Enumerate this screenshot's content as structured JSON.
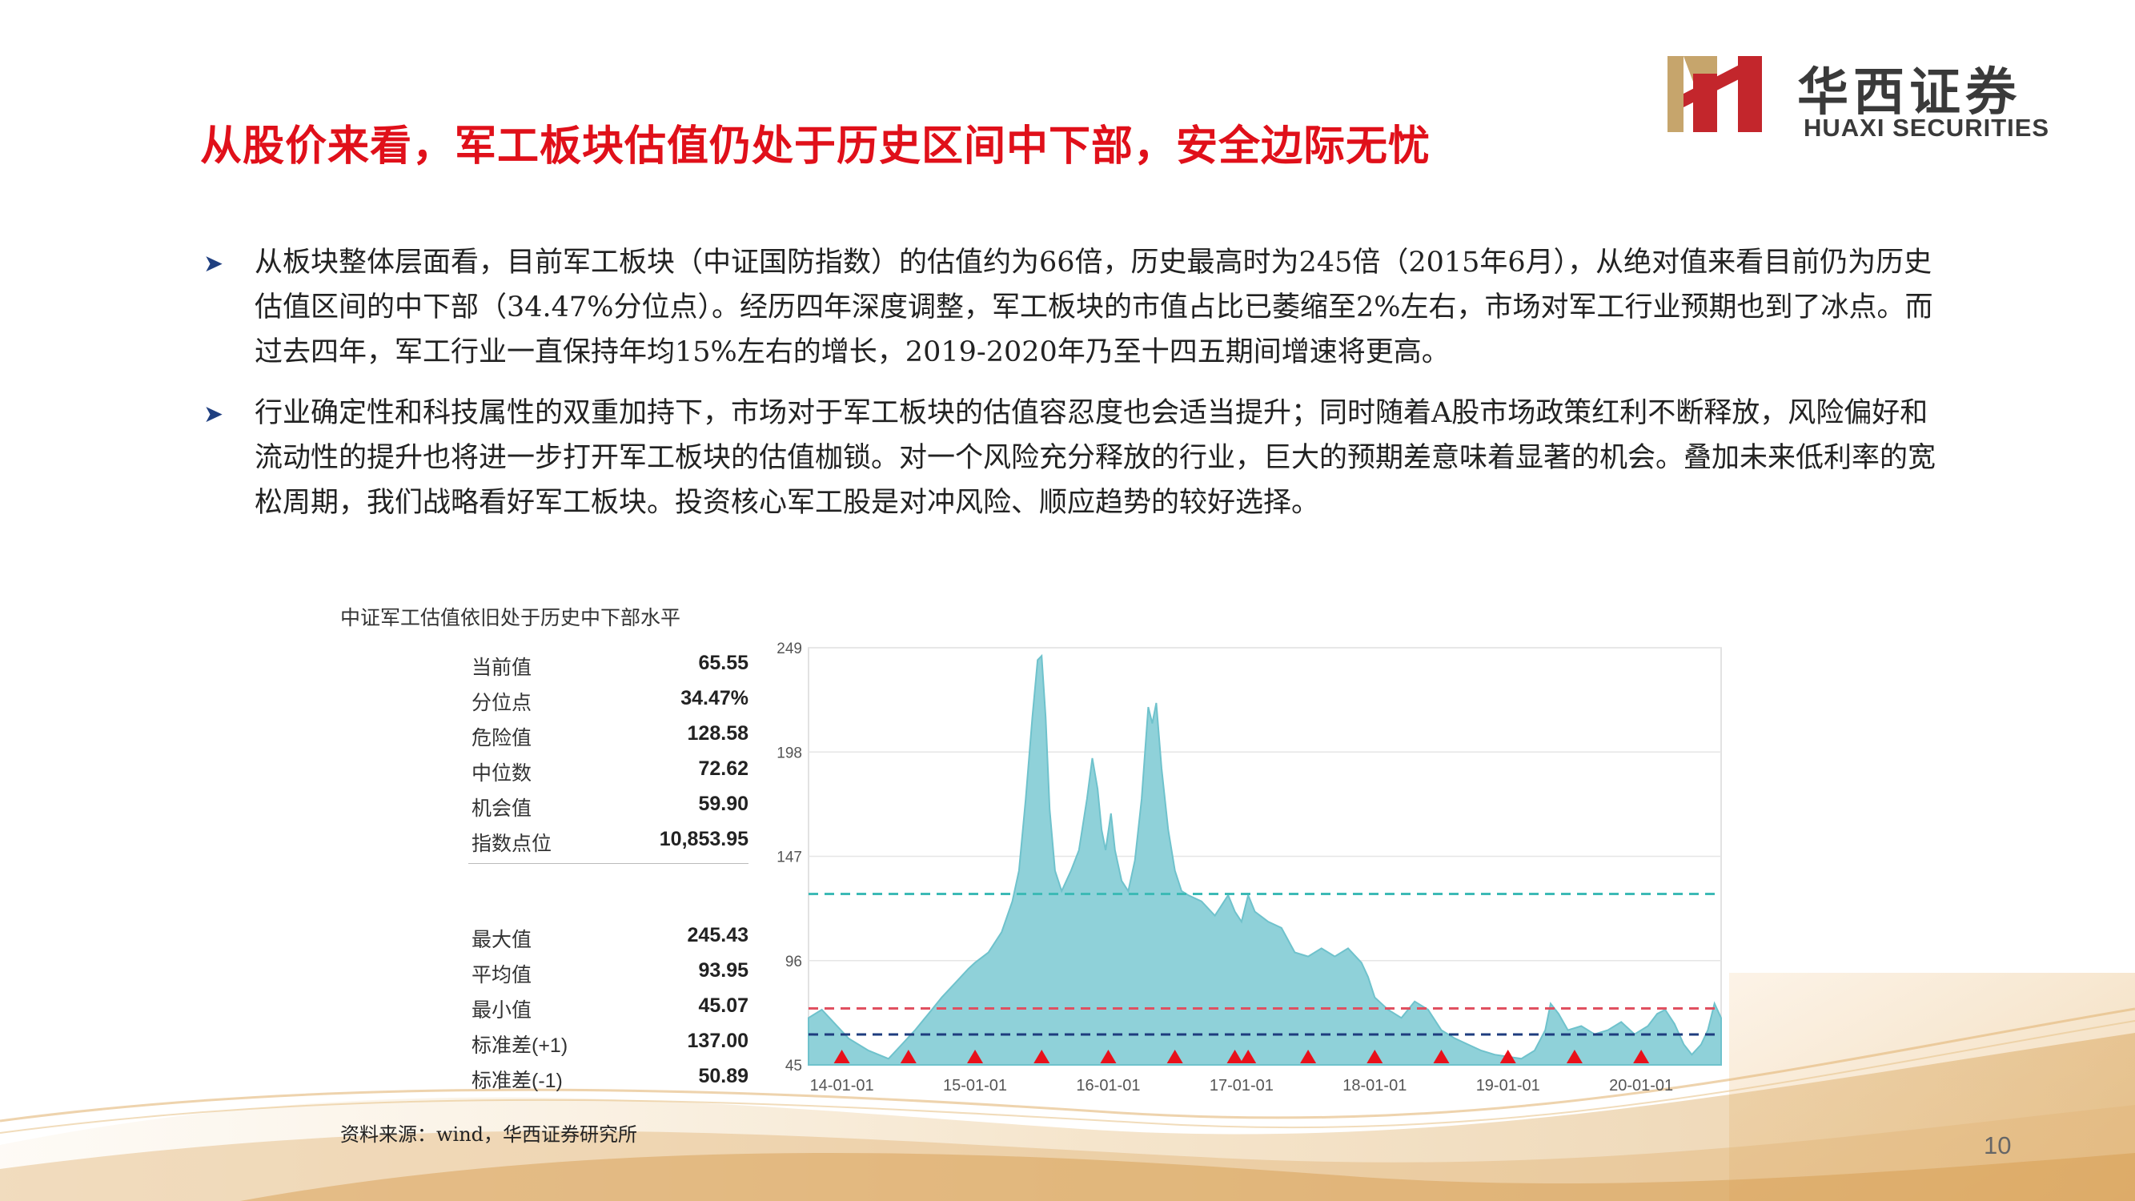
{
  "title": "从股价来看，军工板块估值仍处于历史区间中下部，安全边际无忧",
  "logo": {
    "cn": "华西证券",
    "en": "HUAXI SECURITIES"
  },
  "bullets": [
    "从板块整体层面看，目前军工板块（中证国防指数）的估值约为66倍，历史最高时为245倍（2015年6月），从绝对值来看目前仍为历史估值区间的中下部（34.47%分位点）。经历四年深度调整，军工板块的市值占比已萎缩至2%左右，市场对军工行业预期也到了冰点。而过去四年，军工行业一直保持年均15%左右的增长，2019-2020年乃至十四五期间增速将更高。",
    "行业确定性和科技属性的双重加持下，市场对于军工板块的估值容忍度也会适当提升；同时随着A股市场政策红利不断释放，风险偏好和流动性的提升也将进一步打开军工板块的估值枷锁。对一个风险充分释放的行业，巨大的预期差意味着显著的机会。叠加未来低利率的宽松周期，我们战略看好军工板块。投资核心军工股是对冲风险、顺应趋势的较好选择。"
  ],
  "chart_caption": "中证军工估值依旧处于历史中下部水平",
  "stats_top": [
    {
      "label": "当前值",
      "value": "65.55"
    },
    {
      "label": "分位点",
      "value": "34.47%"
    },
    {
      "label": "危险值",
      "value": "128.58"
    },
    {
      "label": "中位数",
      "value": "72.62"
    },
    {
      "label": "机会值",
      "value": "59.90"
    },
    {
      "label": "指数点位",
      "value": "10,853.95"
    }
  ],
  "stats_bottom": [
    {
      "label": "最大值",
      "value": "245.43"
    },
    {
      "label": "平均值",
      "value": "93.95"
    },
    {
      "label": "最小值",
      "value": "45.07"
    },
    {
      "label": "标准差(+1)",
      "value": "137.00"
    },
    {
      "label": "标准差(-1)",
      "value": "50.89"
    }
  ],
  "chart_data": {
    "type": "area",
    "ylim": [
      45,
      249
    ],
    "yticks": [
      "249",
      "198",
      "147",
      "96",
      "45"
    ],
    "xticks": [
      {
        "t": 0.0,
        "label": "14-01-01"
      },
      {
        "t": 1.0,
        "label": "15-01-01"
      },
      {
        "t": 2.0,
        "label": "16-01-01"
      },
      {
        "t": 3.0,
        "label": "17-01-01"
      },
      {
        "t": 4.0,
        "label": "18-01-01"
      },
      {
        "t": 5.0,
        "label": "19-01-01"
      },
      {
        "t": 6.0,
        "label": "20-01-01"
      }
    ],
    "xlim": [
      -0.25,
      6.6
    ],
    "series": [
      {
        "values": [
          [
            -0.25,
            68
          ],
          [
            -0.15,
            72
          ],
          [
            -0.05,
            65
          ],
          [
            0.05,
            58
          ],
          [
            0.2,
            52
          ],
          [
            0.35,
            48
          ],
          [
            0.45,
            55
          ],
          [
            0.55,
            62
          ],
          [
            0.65,
            70
          ],
          [
            0.75,
            78
          ],
          [
            0.85,
            85
          ],
          [
            0.95,
            92
          ],
          [
            1.0,
            95
          ],
          [
            1.1,
            100
          ],
          [
            1.2,
            110
          ],
          [
            1.28,
            125
          ],
          [
            1.33,
            140
          ],
          [
            1.38,
            175
          ],
          [
            1.43,
            215
          ],
          [
            1.47,
            243
          ],
          [
            1.5,
            245
          ],
          [
            1.53,
            215
          ],
          [
            1.56,
            170
          ],
          [
            1.6,
            140
          ],
          [
            1.65,
            130
          ],
          [
            1.72,
            140
          ],
          [
            1.78,
            150
          ],
          [
            1.84,
            175
          ],
          [
            1.88,
            195
          ],
          [
            1.92,
            180
          ],
          [
            1.95,
            160
          ],
          [
            1.98,
            150
          ],
          [
            2.02,
            168
          ],
          [
            2.05,
            150
          ],
          [
            2.1,
            135
          ],
          [
            2.15,
            130
          ],
          [
            2.2,
            145
          ],
          [
            2.25,
            175
          ],
          [
            2.3,
            220
          ],
          [
            2.33,
            212
          ],
          [
            2.36,
            222
          ],
          [
            2.4,
            190
          ],
          [
            2.45,
            160
          ],
          [
            2.5,
            140
          ],
          [
            2.55,
            130
          ],
          [
            2.6,
            128
          ],
          [
            2.7,
            125
          ],
          [
            2.8,
            118
          ],
          [
            2.9,
            128
          ],
          [
            2.95,
            120
          ],
          [
            3.0,
            115
          ],
          [
            3.05,
            128
          ],
          [
            3.1,
            120
          ],
          [
            3.2,
            115
          ],
          [
            3.3,
            112
          ],
          [
            3.4,
            100
          ],
          [
            3.5,
            98
          ],
          [
            3.6,
            102
          ],
          [
            3.7,
            98
          ],
          [
            3.8,
            102
          ],
          [
            3.9,
            95
          ],
          [
            3.95,
            88
          ],
          [
            4.0,
            78
          ],
          [
            4.1,
            72
          ],
          [
            4.2,
            68
          ],
          [
            4.3,
            76
          ],
          [
            4.4,
            72
          ],
          [
            4.5,
            62
          ],
          [
            4.6,
            58
          ],
          [
            4.7,
            55
          ],
          [
            4.8,
            52
          ],
          [
            4.9,
            50
          ],
          [
            5.0,
            49
          ],
          [
            5.1,
            48
          ],
          [
            5.2,
            52
          ],
          [
            5.28,
            62
          ],
          [
            5.32,
            75
          ],
          [
            5.38,
            70
          ],
          [
            5.45,
            62
          ],
          [
            5.55,
            64
          ],
          [
            5.65,
            60
          ],
          [
            5.75,
            62
          ],
          [
            5.85,
            66
          ],
          [
            5.95,
            60
          ],
          [
            6.05,
            64
          ],
          [
            6.12,
            70
          ],
          [
            6.18,
            72
          ],
          [
            6.25,
            65
          ],
          [
            6.32,
            55
          ],
          [
            6.38,
            50
          ],
          [
            6.45,
            55
          ],
          [
            6.5,
            62
          ],
          [
            6.55,
            75
          ],
          [
            6.6,
            68
          ]
        ]
      }
    ],
    "reference_lines": [
      {
        "value": 128.58,
        "color": "#3dbab6"
      },
      {
        "value": 72.62,
        "color": "#e05060"
      },
      {
        "value": 59.9,
        "color": "#1e3c7e"
      }
    ],
    "markers_x": [
      0.0,
      0.5,
      1.0,
      1.5,
      2.0,
      2.5,
      2.95,
      3.05,
      3.5,
      4.0,
      4.5,
      5.0,
      5.5,
      6.0
    ],
    "colors": {
      "area": "#8fd1d9",
      "area_stroke": "#6fc2cc",
      "marker": "#e8101a",
      "title": "#e0101a",
      "logo_red": "#c3262c",
      "logo_gold": "#c6a56c"
    }
  },
  "source": "资料来源：wind，华西证券研究所",
  "page_number": "10"
}
